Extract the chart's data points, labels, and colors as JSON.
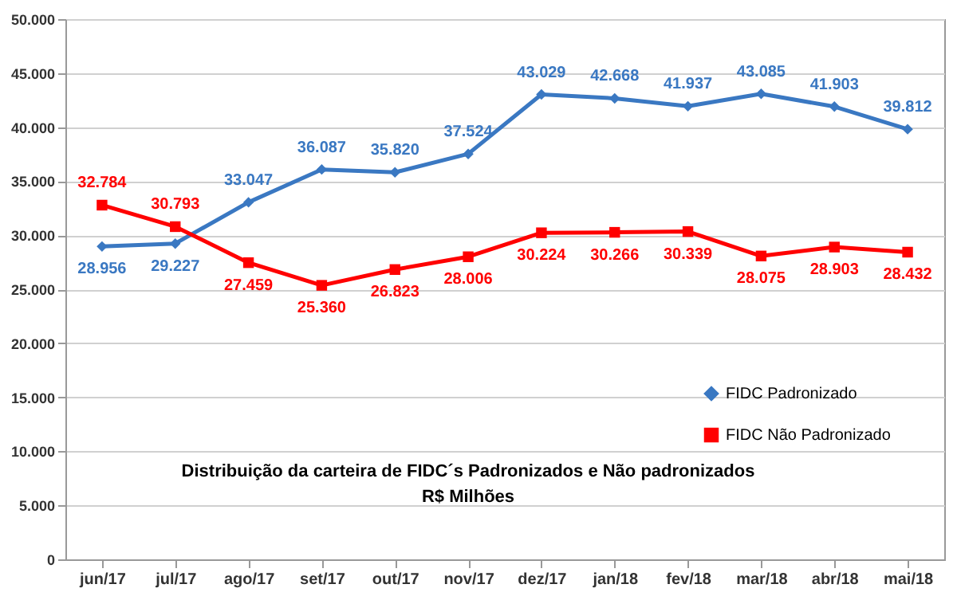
{
  "chart_data": {
    "type": "line",
    "title": "Distribuição da carteira de FIDC´s Padronizados e Não padronizados",
    "subtitle": "R$ Milhões",
    "categories": [
      "jun/17",
      "jul/17",
      "ago/17",
      "set/17",
      "out/17",
      "nov/17",
      "dez/17",
      "jan/18",
      "fev/18",
      "mar/18",
      "abr/18",
      "mai/18"
    ],
    "series": [
      {
        "name": "FIDC Padronizado",
        "color": "#3a78c2",
        "marker": "diamond",
        "values": [
          28956,
          29227,
          33047,
          36087,
          35820,
          37524,
          43029,
          42668,
          41937,
          43085,
          41903,
          39812
        ],
        "value_labels": [
          "28.956",
          "29.227",
          "33.047",
          "36.087",
          "35.820",
          "37.524",
          "43.029",
          "42.668",
          "41.937",
          "43.085",
          "41.903",
          "39.812"
        ]
      },
      {
        "name": "FIDC Não Padronizado",
        "color": "#ff0000",
        "marker": "square",
        "values": [
          32784,
          30793,
          27459,
          25360,
          26823,
          28006,
          30224,
          30266,
          30339,
          28075,
          28903,
          28432
        ],
        "value_labels": [
          "32.784",
          "30.793",
          "27.459",
          "25.360",
          "26.823",
          "28.006",
          "30.224",
          "30.266",
          "30.339",
          "28.075",
          "28.903",
          "28.432"
        ]
      }
    ],
    "ylim": [
      0,
      50000
    ],
    "yticks": [
      0,
      {
        "value": 5000,
        "label": "5.000"
      },
      {
        "value": 10000,
        "label": "10.000"
      },
      {
        "value": 15000,
        "label": "15.000"
      },
      {
        "value": 20000,
        "label": "20.000"
      },
      {
        "value": 25000,
        "label": "25.000"
      },
      {
        "value": 30000,
        "label": "30.000"
      },
      {
        "value": 35000,
        "label": "35.000"
      },
      {
        "value": 40000,
        "label": "40.000"
      },
      {
        "value": 45000,
        "label": "45.000"
      },
      {
        "value": 50000,
        "label": "50.000"
      }
    ],
    "grid": "y",
    "legend": "right"
  }
}
